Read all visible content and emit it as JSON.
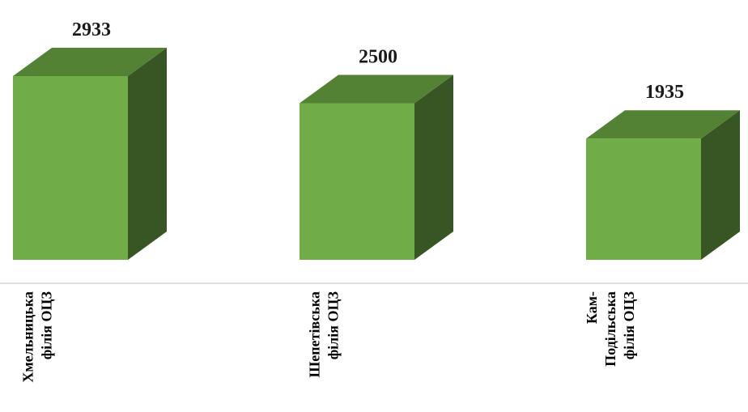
{
  "chart_data": {
    "type": "bar",
    "categories": [
      [
        "Хмельницька",
        "філія ОЦЗ"
      ],
      [
        "Шепетівська",
        "філія ОЦЗ"
      ],
      [
        "Кам-",
        "Подільська",
        "філія ОЦЗ"
      ]
    ],
    "values": [
      2933,
      2500,
      1935
    ],
    "data_labels": [
      "2933",
      "2500",
      "1935"
    ],
    "title": "",
    "xlabel": "",
    "ylabel": "",
    "ylim": [
      0,
      2933
    ],
    "grid": false,
    "legend": "none",
    "style": "3d-column"
  },
  "colors": {
    "front": "#70ad47",
    "top": "#548235",
    "side": "#375623",
    "axis": "#bfbfbf",
    "label": "#1a1a1a"
  }
}
